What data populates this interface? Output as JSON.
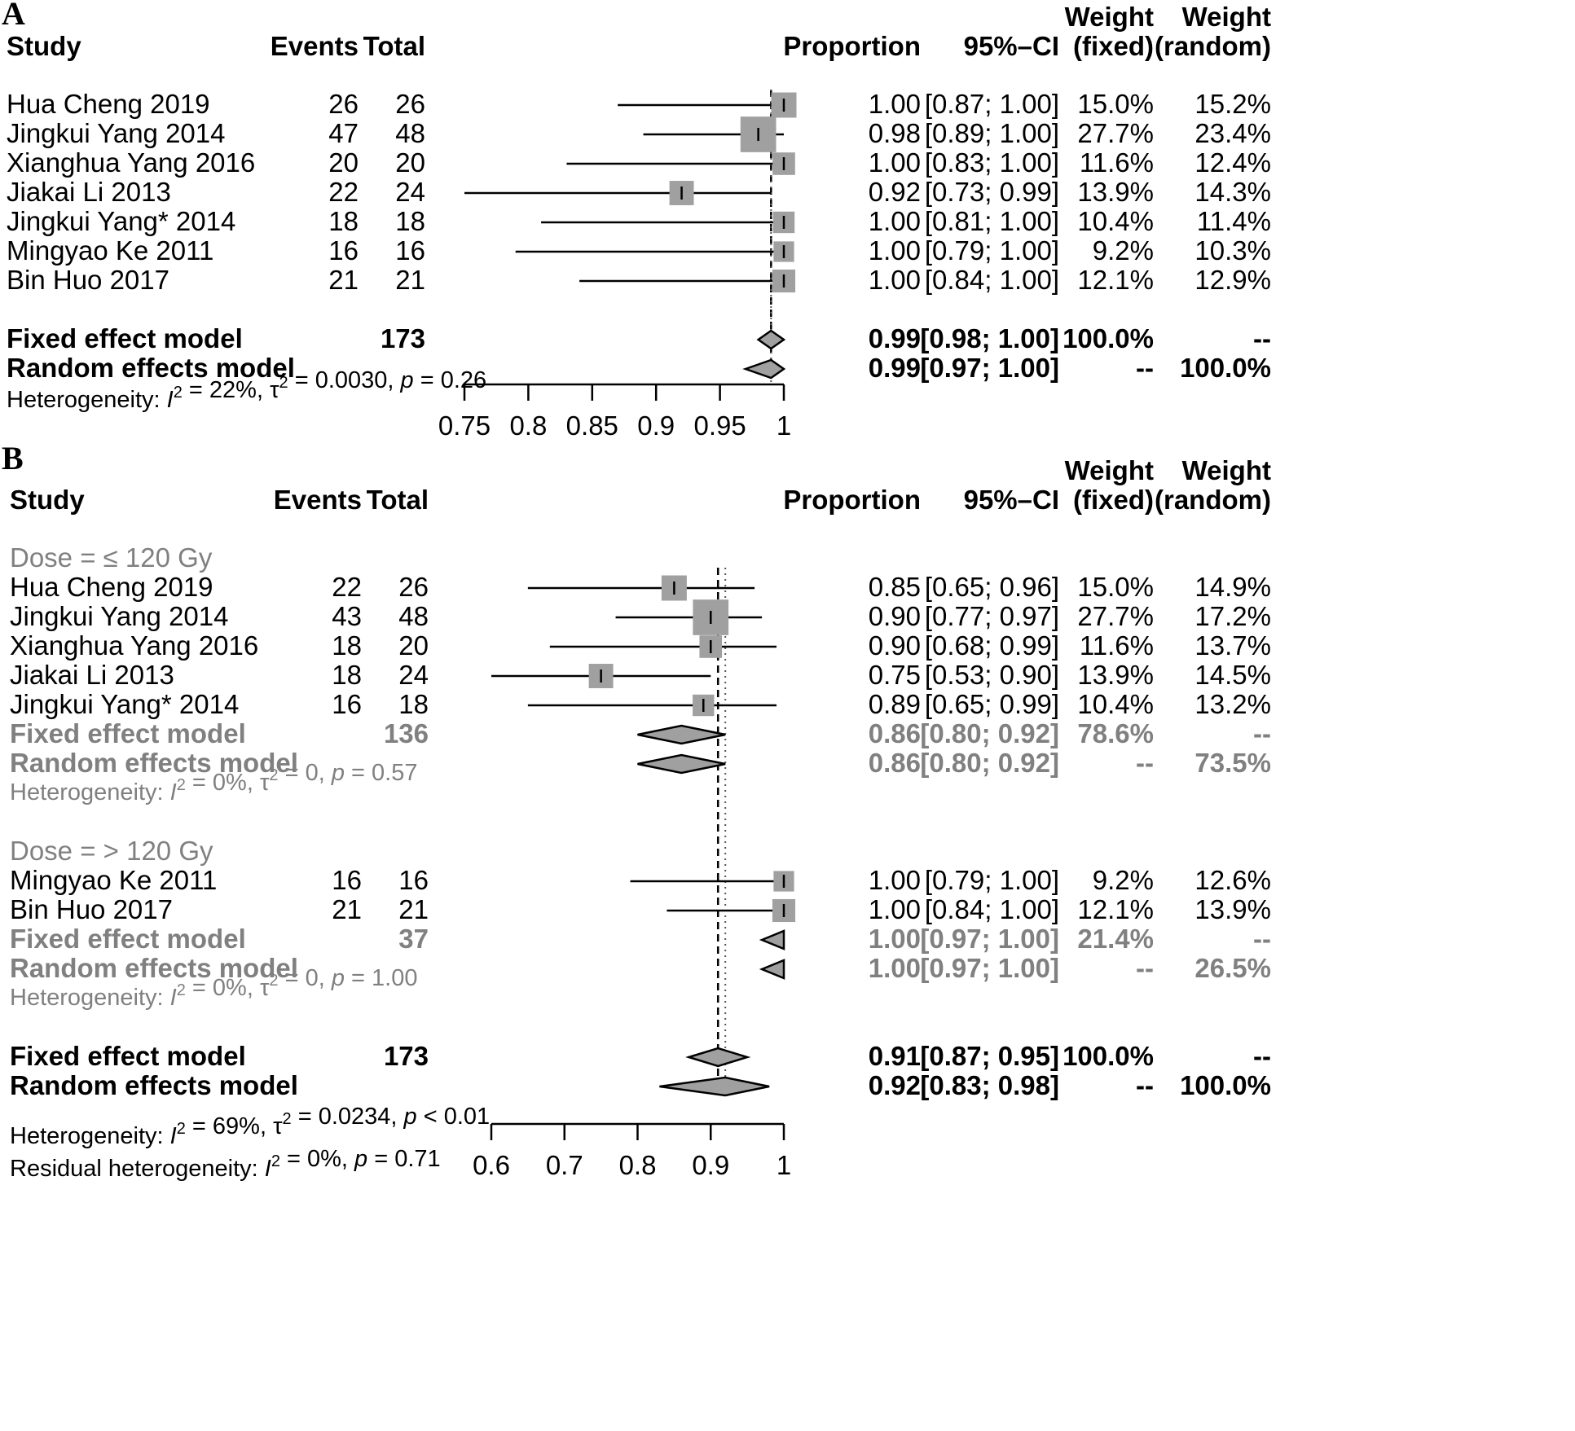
{
  "chart_data": [
    {
      "type": "forest",
      "panel_label": "A",
      "headers": {
        "study": "Study",
        "events": "Events",
        "total": "Total",
        "proportion": "Proportion",
        "ci": "95%–CI",
        "weight_fixed": [
          "Weight",
          "(fixed)"
        ],
        "weight_random": [
          "Weight",
          "(random)"
        ]
      },
      "axis": {
        "min": 0.75,
        "max": 1,
        "ticks": [
          0.75,
          0.8,
          0.85,
          0.9,
          0.95,
          1
        ],
        "tick_labels": [
          "0.75",
          "0.8",
          "0.85",
          "0.9",
          "0.95",
          "1"
        ]
      },
      "reference_lines": {
        "fixed": 0.99,
        "random": 0.99
      },
      "studies": [
        {
          "name": "Hua Cheng 2019",
          "events": 26,
          "total": 26,
          "prop": 1.0,
          "lo": 0.87,
          "hi": 1.0,
          "prop_text": "1.00",
          "ci_text": "[0.87; 1.00]",
          "w_fixed": "15.0%",
          "w_random": "15.2%"
        },
        {
          "name": "Jingkui Yang 2014",
          "events": 47,
          "total": 48,
          "prop": 0.98,
          "lo": 0.89,
          "hi": 1.0,
          "prop_text": "0.98",
          "ci_text": "[0.89; 1.00]",
          "w_fixed": "27.7%",
          "w_random": "23.4%"
        },
        {
          "name": "Xianghua Yang 2016",
          "events": 20,
          "total": 20,
          "prop": 1.0,
          "lo": 0.83,
          "hi": 1.0,
          "prop_text": "1.00",
          "ci_text": "[0.83; 1.00]",
          "w_fixed": "11.6%",
          "w_random": "12.4%"
        },
        {
          "name": "Jiakai Li 2013",
          "events": 22,
          "total": 24,
          "prop": 0.92,
          "lo": 0.73,
          "hi": 0.99,
          "prop_text": "0.92",
          "ci_text": "[0.73; 0.99]",
          "w_fixed": "13.9%",
          "w_random": "14.3%"
        },
        {
          "name": "Jingkui Yang* 2014",
          "events": 18,
          "total": 18,
          "prop": 1.0,
          "lo": 0.81,
          "hi": 1.0,
          "prop_text": "1.00",
          "ci_text": "[0.81; 1.00]",
          "w_fixed": "10.4%",
          "w_random": "11.4%"
        },
        {
          "name": "Mingyao Ke 2011",
          "events": 16,
          "total": 16,
          "prop": 1.0,
          "lo": 0.79,
          "hi": 1.0,
          "prop_text": "1.00",
          "ci_text": "[0.79; 1.00]",
          "w_fixed": "9.2%",
          "w_random": "10.3%"
        },
        {
          "name": "Bin Huo 2017",
          "events": 21,
          "total": 21,
          "prop": 1.0,
          "lo": 0.84,
          "hi": 1.0,
          "prop_text": "1.00",
          "ci_text": "[0.84; 1.00]",
          "w_fixed": "12.1%",
          "w_random": "12.9%"
        }
      ],
      "overall": [
        {
          "name": "Fixed effect model",
          "total": "173",
          "prop": 0.99,
          "lo": 0.98,
          "hi": 1.0,
          "prop_text": "0.99",
          "ci_text": "[0.98; 1.00]",
          "w_fixed": "100.0%",
          "w_random": "--"
        },
        {
          "name": "Random effects model",
          "total": "",
          "prop": 0.99,
          "lo": 0.97,
          "hi": 1.0,
          "prop_text": "0.99",
          "ci_text": "[0.97; 1.00]",
          "w_fixed": "--",
          "w_random": "100.0%"
        }
      ],
      "heterogeneity": "Heterogeneity: I² = 22%, τ² = 0.0030, p = 0.26"
    },
    {
      "type": "forest",
      "panel_label": "B",
      "headers": {
        "study": "Study",
        "events": "Events",
        "total": "Total",
        "proportion": "Proportion",
        "ci": "95%–CI",
        "weight_fixed": [
          "Weight",
          "(fixed)"
        ],
        "weight_random": [
          "Weight",
          "(random)"
        ]
      },
      "axis": {
        "min": 0.6,
        "max": 1,
        "ticks": [
          0.6,
          0.7,
          0.8,
          0.9,
          1
        ],
        "tick_labels": [
          "0.6",
          "0.7",
          "0.8",
          "0.9",
          "1"
        ]
      },
      "reference_lines": {
        "fixed": 0.91,
        "random": 0.92
      },
      "subgroups": [
        {
          "label": "Dose = ≤ 120 Gy",
          "studies": [
            {
              "name": "Hua Cheng 2019",
              "events": 22,
              "total": 26,
              "prop": 0.85,
              "lo": 0.65,
              "hi": 0.96,
              "prop_text": "0.85",
              "ci_text": "[0.65; 0.96]",
              "w_fixed": "15.0%",
              "w_random": "14.9%"
            },
            {
              "name": "Jingkui Yang 2014",
              "events": 43,
              "total": 48,
              "prop": 0.9,
              "lo": 0.77,
              "hi": 0.97,
              "prop_text": "0.90",
              "ci_text": "[0.77; 0.97]",
              "w_fixed": "27.7%",
              "w_random": "17.2%"
            },
            {
              "name": "Xianghua Yang 2016",
              "events": 18,
              "total": 20,
              "prop": 0.9,
              "lo": 0.68,
              "hi": 0.99,
              "prop_text": "0.90",
              "ci_text": "[0.68; 0.99]",
              "w_fixed": "11.6%",
              "w_random": "13.7%"
            },
            {
              "name": "Jiakai Li 2013",
              "events": 18,
              "total": 24,
              "prop": 0.75,
              "lo": 0.53,
              "hi": 0.9,
              "prop_text": "0.75",
              "ci_text": "[0.53; 0.90]",
              "w_fixed": "13.9%",
              "w_random": "14.5%"
            },
            {
              "name": "Jingkui Yang* 2014",
              "events": 16,
              "total": 18,
              "prop": 0.89,
              "lo": 0.65,
              "hi": 0.99,
              "prop_text": "0.89",
              "ci_text": "[0.65; 0.99]",
              "w_fixed": "10.4%",
              "w_random": "13.2%"
            }
          ],
          "models": [
            {
              "name": "Fixed effect model",
              "total": "136",
              "prop": 0.86,
              "lo": 0.8,
              "hi": 0.92,
              "prop_text": "0.86",
              "ci_text": "[0.80; 0.92]",
              "w_fixed": "78.6%",
              "w_random": "--"
            },
            {
              "name": "Random effects model",
              "total": "",
              "prop": 0.86,
              "lo": 0.8,
              "hi": 0.92,
              "prop_text": "0.86",
              "ci_text": "[0.80; 0.92]",
              "w_fixed": "--",
              "w_random": "73.5%"
            }
          ],
          "heterogeneity": "Heterogeneity: I² = 0%, τ² = 0, p = 0.57"
        },
        {
          "label": "Dose = > 120 Gy",
          "studies": [
            {
              "name": "Mingyao Ke 2011",
              "events": 16,
              "total": 16,
              "prop": 1.0,
              "lo": 0.79,
              "hi": 1.0,
              "prop_text": "1.00",
              "ci_text": "[0.79; 1.00]",
              "w_fixed": "9.2%",
              "w_random": "12.6%"
            },
            {
              "name": "Bin Huo 2017",
              "events": 21,
              "total": 21,
              "prop": 1.0,
              "lo": 0.84,
              "hi": 1.0,
              "prop_text": "1.00",
              "ci_text": "[0.84; 1.00]",
              "w_fixed": "12.1%",
              "w_random": "13.9%"
            }
          ],
          "models": [
            {
              "name": "Fixed effect model",
              "total": "37",
              "prop": 1.0,
              "lo": 0.97,
              "hi": 1.0,
              "prop_text": "1.00",
              "ci_text": "[0.97; 1.00]",
              "w_fixed": "21.4%",
              "w_random": "--"
            },
            {
              "name": "Random effects model",
              "total": "",
              "prop": 1.0,
              "lo": 0.97,
              "hi": 1.0,
              "prop_text": "1.00",
              "ci_text": "[0.97; 1.00]",
              "w_fixed": "--",
              "w_random": "26.5%"
            }
          ],
          "heterogeneity": "Heterogeneity: I² = 0%, τ² = 0, p = 1.00"
        }
      ],
      "overall": [
        {
          "name": "Fixed effect model",
          "total": "173",
          "prop": 0.91,
          "lo": 0.87,
          "hi": 0.95,
          "prop_text": "0.91",
          "ci_text": "[0.87; 0.95]",
          "w_fixed": "100.0%",
          "w_random": "--"
        },
        {
          "name": "Random effects model",
          "total": "",
          "prop": 0.92,
          "lo": 0.83,
          "hi": 0.98,
          "prop_text": "0.92",
          "ci_text": "[0.83; 0.98]",
          "w_fixed": "--",
          "w_random": "100.0%"
        }
      ],
      "heterogeneity": "Heterogeneity: I² = 69%, τ² = 0.0234, p < 0.01",
      "residual_heterogeneity": "Residual heterogeneity: I² = 0%, p = 0.71"
    }
  ]
}
